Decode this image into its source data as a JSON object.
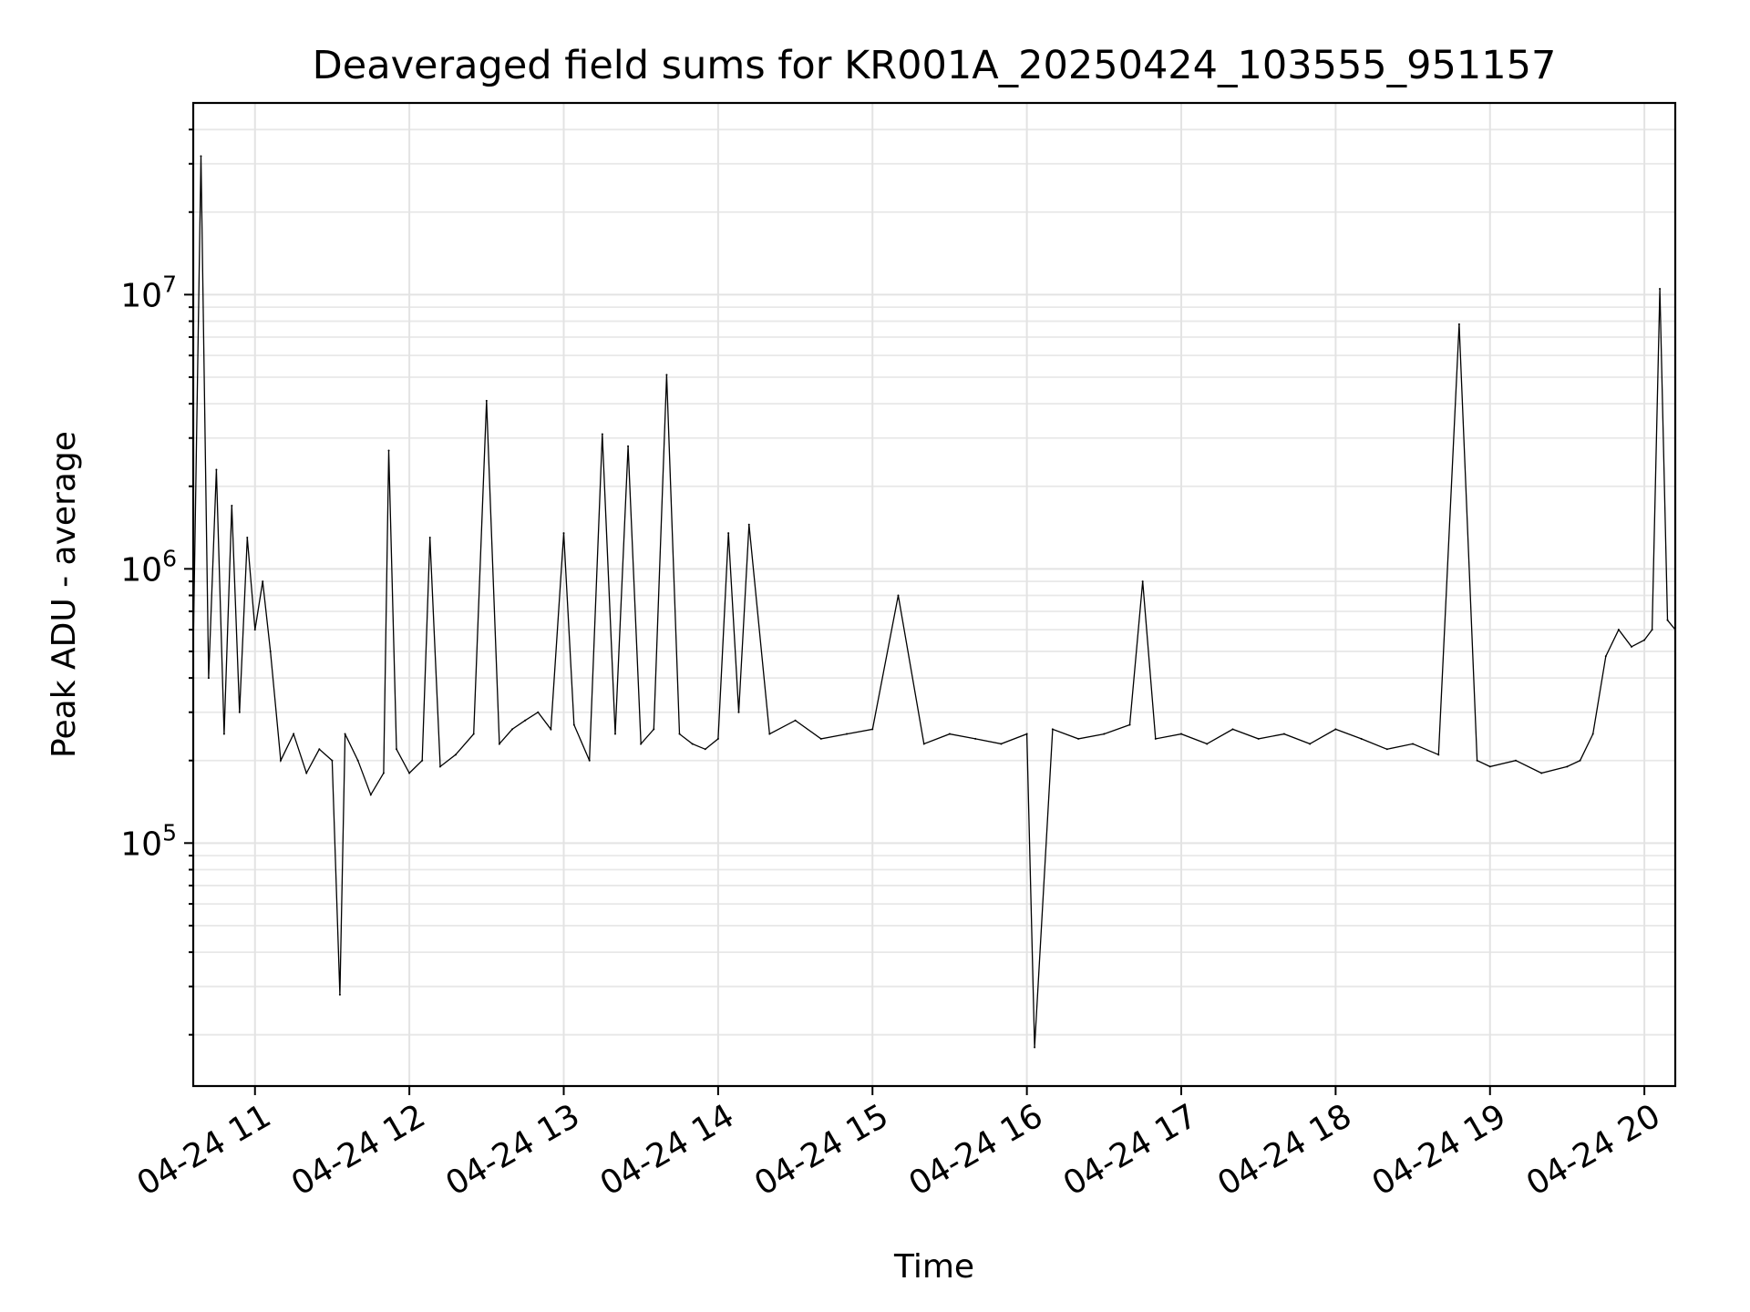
{
  "chart_data": {
    "type": "line",
    "title": "Deaveraged field sums for KR001A_20250424_103555_951157",
    "xlabel": "Time",
    "ylabel": "Peak ADU - average",
    "y_scale": "log",
    "grid": true,
    "grid_minor_y": true,
    "legend": false,
    "xlim": [
      "2025-04-24 10:36",
      "2025-04-24 20:12"
    ],
    "ylim": [
      13000,
      50000000
    ],
    "x_tick_labels": [
      "04-24 11",
      "04-24 12",
      "04-24 13",
      "04-24 14",
      "04-24 15",
      "04-24 16",
      "04-24 17",
      "04-24 18",
      "04-24 19",
      "04-24 20"
    ],
    "y_ticks": [
      {
        "value": 100000,
        "base": "10",
        "exp": "5"
      },
      {
        "value": 1000000,
        "base": "10",
        "exp": "6"
      },
      {
        "value": 10000000,
        "base": "10",
        "exp": "7"
      }
    ],
    "line_color": "#000000",
    "note_baseline": "dense noisy series, typical level ~2e5 to 3e5, elevated ~5e5 before 11:00 and after 19:40",
    "x": [
      "2025-04-24 10:36",
      "2025-04-24 10:39",
      "2025-04-24 10:42",
      "2025-04-24 10:45",
      "2025-04-24 10:48",
      "2025-04-24 10:51",
      "2025-04-24 10:54",
      "2025-04-24 10:57",
      "2025-04-24 11:00",
      "2025-04-24 11:03",
      "2025-04-24 11:06",
      "2025-04-24 11:10",
      "2025-04-24 11:15",
      "2025-04-24 11:20",
      "2025-04-24 11:25",
      "2025-04-24 11:30",
      "2025-04-24 11:33",
      "2025-04-24 11:35",
      "2025-04-24 11:40",
      "2025-04-24 11:45",
      "2025-04-24 11:50",
      "2025-04-24 11:52",
      "2025-04-24 11:55",
      "2025-04-24 12:00",
      "2025-04-24 12:05",
      "2025-04-24 12:08",
      "2025-04-24 12:12",
      "2025-04-24 12:18",
      "2025-04-24 12:25",
      "2025-04-24 12:30",
      "2025-04-24 12:35",
      "2025-04-24 12:40",
      "2025-04-24 12:45",
      "2025-04-24 12:50",
      "2025-04-24 12:55",
      "2025-04-24 13:00",
      "2025-04-24 13:04",
      "2025-04-24 13:10",
      "2025-04-24 13:15",
      "2025-04-24 13:20",
      "2025-04-24 13:25",
      "2025-04-24 13:30",
      "2025-04-24 13:35",
      "2025-04-24 13:40",
      "2025-04-24 13:45",
      "2025-04-24 13:50",
      "2025-04-24 13:55",
      "2025-04-24 14:00",
      "2025-04-24 14:04",
      "2025-04-24 14:08",
      "2025-04-24 14:12",
      "2025-04-24 14:20",
      "2025-04-24 14:30",
      "2025-04-24 14:40",
      "2025-04-24 14:50",
      "2025-04-24 15:00",
      "2025-04-24 15:10",
      "2025-04-24 15:20",
      "2025-04-24 15:30",
      "2025-04-24 15:40",
      "2025-04-24 15:50",
      "2025-04-24 16:00",
      "2025-04-24 16:03",
      "2025-04-24 16:10",
      "2025-04-24 16:20",
      "2025-04-24 16:30",
      "2025-04-24 16:40",
      "2025-04-24 16:45",
      "2025-04-24 16:50",
      "2025-04-24 17:00",
      "2025-04-24 17:10",
      "2025-04-24 17:20",
      "2025-04-24 17:30",
      "2025-04-24 17:40",
      "2025-04-24 17:50",
      "2025-04-24 18:00",
      "2025-04-24 18:10",
      "2025-04-24 18:20",
      "2025-04-24 18:30",
      "2025-04-24 18:40",
      "2025-04-24 18:48",
      "2025-04-24 18:55",
      "2025-04-24 19:00",
      "2025-04-24 19:10",
      "2025-04-24 19:20",
      "2025-04-24 19:30",
      "2025-04-24 19:35",
      "2025-04-24 19:40",
      "2025-04-24 19:45",
      "2025-04-24 19:50",
      "2025-04-24 19:55",
      "2025-04-24 20:00",
      "2025-04-24 20:03",
      "2025-04-24 20:06",
      "2025-04-24 20:09",
      "2025-04-24 20:12"
    ],
    "y": [
      500000,
      32000000,
      400000,
      2300000,
      250000,
      1700000,
      300000,
      1300000,
      600000,
      900000,
      500000,
      200000,
      250000,
      180000,
      220000,
      200000,
      28000,
      250000,
      200000,
      150000,
      180000,
      2700000,
      220000,
      180000,
      200000,
      1300000,
      190000,
      210000,
      250000,
      4100000,
      230000,
      260000,
      280000,
      300000,
      260000,
      1350000,
      270000,
      200000,
      3100000,
      250000,
      2800000,
      230000,
      260000,
      5100000,
      250000,
      230000,
      220000,
      240000,
      1350000,
      300000,
      1450000,
      250000,
      280000,
      240000,
      250000,
      260000,
      800000,
      230000,
      250000,
      240000,
      230000,
      250000,
      18000,
      260000,
      240000,
      250000,
      270000,
      900000,
      240000,
      250000,
      230000,
      260000,
      240000,
      250000,
      230000,
      260000,
      240000,
      220000,
      230000,
      210000,
      7800000,
      200000,
      190000,
      200000,
      180000,
      190000,
      200000,
      250000,
      480000,
      600000,
      520000,
      550000,
      600000,
      10500000,
      650000,
      600000
    ]
  }
}
